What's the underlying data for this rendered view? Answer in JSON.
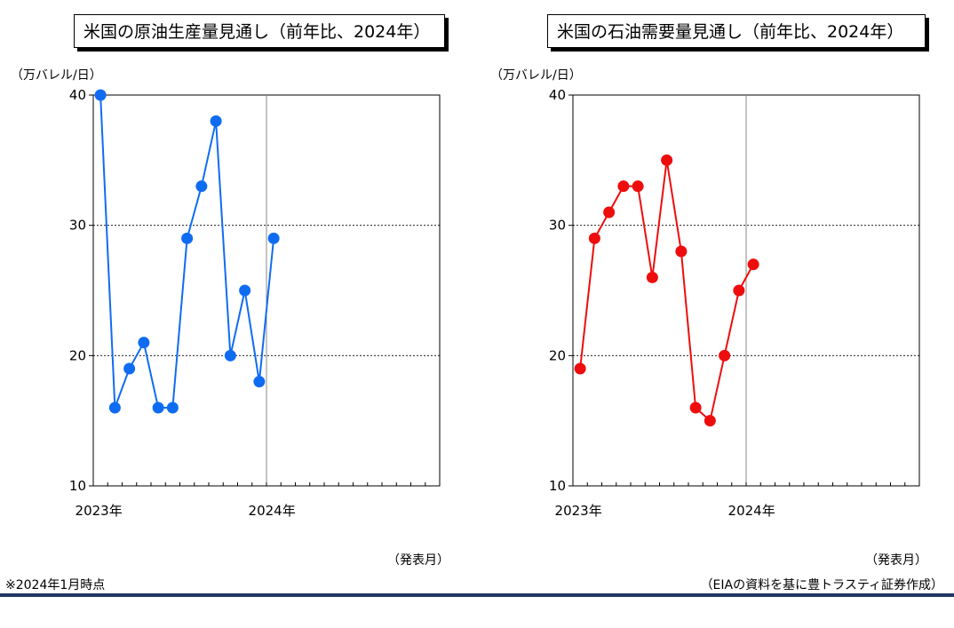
{
  "colors": {
    "left_series": "#0f6cf2",
    "right_series": "#ee0d0d",
    "bottom_rule": "#1f3864"
  },
  "footnote": "※2024年1月時点",
  "source": "（EIAの資料を基に豊トラスティ証券作成）",
  "chart_data": [
    {
      "type": "line",
      "title": "米国の原油生産量見通し（前年比、2024年）",
      "ylabel": "（万バレル/日）",
      "xlabel": "（発表月）",
      "ylim": [
        10,
        40
      ],
      "yticks": [
        10,
        20,
        30,
        40
      ],
      "gridlines": [
        20,
        30
      ],
      "x_tick_labels": [
        "2023年",
        "2024年"
      ],
      "x_months": 24,
      "series": [
        {
          "values": [
            40,
            16,
            19,
            21,
            16,
            16,
            29,
            33,
            38,
            20,
            25,
            18,
            29
          ]
        }
      ]
    },
    {
      "type": "line",
      "title": "米国の石油需要量見通し（前年比、2024年）",
      "ylabel": "（万バレル/日）",
      "xlabel": "（発表月）",
      "ylim": [
        10,
        40
      ],
      "yticks": [
        10,
        20,
        30,
        40
      ],
      "gridlines": [
        20,
        30
      ],
      "x_tick_labels": [
        "2023年",
        "2024年"
      ],
      "x_months": 24,
      "series": [
        {
          "values": [
            19,
            29,
            31,
            33,
            33,
            26,
            35,
            28,
            16,
            15,
            20,
            25,
            27
          ]
        }
      ]
    }
  ]
}
